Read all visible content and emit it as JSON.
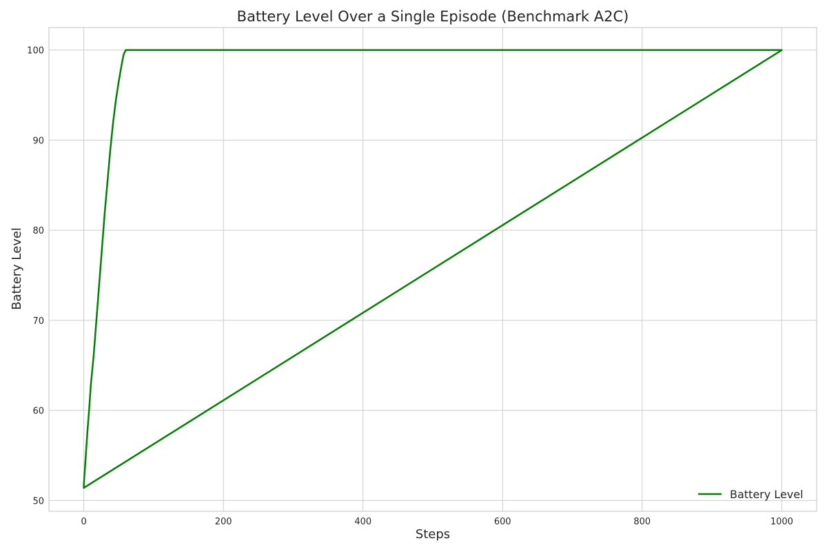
{
  "chart_data": {
    "type": "line",
    "title": "Battery Level Over a Single Episode (Benchmark A2C)",
    "xlabel": "Steps",
    "ylabel": "Battery Level",
    "xlim": [
      -50,
      1050
    ],
    "ylim": [
      48.8,
      102.5
    ],
    "xticks": [
      0,
      200,
      400,
      600,
      800,
      1000
    ],
    "yticks": [
      50,
      60,
      70,
      80,
      90,
      100
    ],
    "grid": true,
    "legend_position": "bottom-right",
    "series": [
      {
        "name": "Battery Level",
        "color": "#008000",
        "x": [
          0,
          0,
          2,
          5,
          8,
          10,
          14,
          18,
          22,
          26,
          30,
          34,
          38,
          42,
          46,
          50,
          54,
          57,
          60,
          100,
          300,
          500,
          700,
          900,
          1000,
          0
        ],
        "y": [
          51.4,
          51.8,
          54.0,
          57.5,
          60.5,
          62.8,
          66.0,
          70.0,
          74.0,
          78.0,
          82.0,
          85.5,
          89.0,
          92.0,
          94.5,
          96.5,
          98.3,
          99.5,
          100,
          100,
          100,
          100,
          100,
          100,
          100,
          51.4
        ]
      }
    ]
  }
}
